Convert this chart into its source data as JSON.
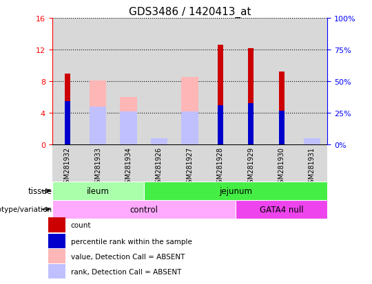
{
  "title": "GDS3486 / 1420413_at",
  "samples": [
    "GSM281932",
    "GSM281933",
    "GSM281934",
    "GSM281926",
    "GSM281927",
    "GSM281928",
    "GSM281929",
    "GSM281930",
    "GSM281931"
  ],
  "count_values": [
    9.0,
    0,
    0,
    0,
    0,
    12.6,
    12.2,
    9.2,
    0
  ],
  "percentile_values": [
    5.5,
    0,
    0,
    0,
    0,
    5.0,
    5.2,
    4.3,
    0
  ],
  "absent_value_values": [
    0,
    8.1,
    6.0,
    0,
    8.5,
    0,
    0,
    0,
    0.3
  ],
  "absent_rank_values": [
    0,
    4.8,
    4.2,
    0.8,
    4.2,
    0,
    0,
    0,
    0.8
  ],
  "ylim": [
    0,
    16
  ],
  "ylim_right": [
    0,
    100
  ],
  "yticks_left": [
    0,
    4,
    8,
    12,
    16
  ],
  "yticks_right": [
    0,
    25,
    50,
    75,
    100
  ],
  "tissue_groups": [
    {
      "label": "ileum",
      "start": 0,
      "end": 3,
      "color": "#aaffaa"
    },
    {
      "label": "jejunum",
      "start": 3,
      "end": 9,
      "color": "#44ee44"
    }
  ],
  "genotype_groups": [
    {
      "label": "control",
      "start": 0,
      "end": 6,
      "color": "#ffaaff"
    },
    {
      "label": "GATA4 null",
      "start": 6,
      "end": 9,
      "color": "#ee44ee"
    }
  ],
  "color_count": "#CC0000",
  "color_percentile": "#0000CC",
  "color_absent_value": "#FFB6B6",
  "color_absent_rank": "#C0C0FF",
  "bg_col": "#D8D8D8",
  "title_fontsize": 11,
  "legend_items": [
    {
      "color": "#CC0000",
      "label": "count"
    },
    {
      "color": "#0000CC",
      "label": "percentile rank within the sample"
    },
    {
      "color": "#FFB6B6",
      "label": "value, Detection Call = ABSENT"
    },
    {
      "color": "#C0C0FF",
      "label": "rank, Detection Call = ABSENT"
    }
  ]
}
